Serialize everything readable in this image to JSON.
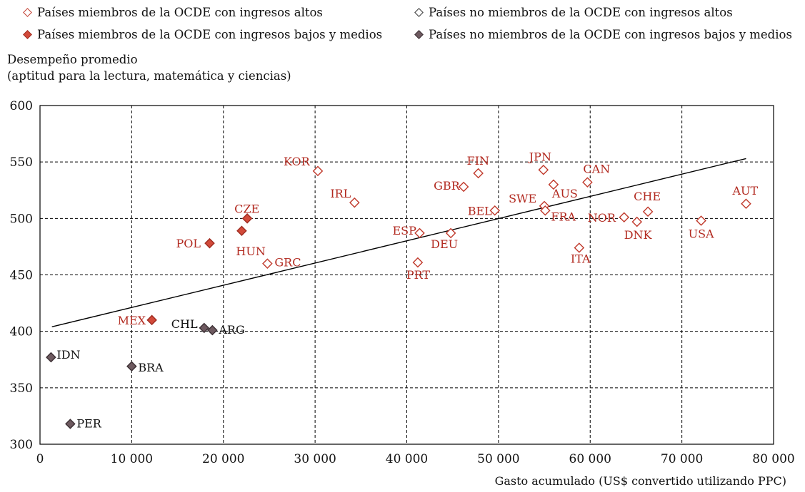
{
  "legend": [
    {
      "label": "Países miembros de la OCDE con ingresos altos",
      "marker": "open",
      "color": "#c0392b"
    },
    {
      "label": "Países no miembros de la OCDE con ingresos altos",
      "marker": "open",
      "color": "#333333"
    },
    {
      "label": "Países miembros de la OCDE con ingresos bajos y medios",
      "marker": "filled",
      "color": "#d24a3a"
    },
    {
      "label": "Países no miembros de la OCDE con ingresos bajos y medios",
      "marker": "filled",
      "color": "#6e5a60"
    }
  ],
  "colors": {
    "oecd_high_text": "#b22a20",
    "oecd_low_fill": "#d24a3a",
    "non_oecd_low_fill": "#6e5a60",
    "non_oecd_low_text": "#111111",
    "grid": "#000000"
  },
  "chart_data": {
    "type": "scatter",
    "ylabel_line1": "Desempeño promedio",
    "ylabel_line2": "(aptitud para la lectura, matemática y ciencias)",
    "xlabel": "Gasto acumulado (US$ convertido utilizando PPC)",
    "xlim": [
      0,
      80000
    ],
    "ylim": [
      300,
      600
    ],
    "xticks": [
      0,
      10000,
      20000,
      30000,
      40000,
      50000,
      60000,
      70000,
      80000
    ],
    "xtick_labels": [
      "0",
      "10 000",
      "20 000",
      "30 000",
      "40 000",
      "50 000",
      "60 000",
      "70 000",
      "80 000"
    ],
    "yticks": [
      300,
      350,
      400,
      450,
      500,
      550,
      600
    ],
    "ytick_labels": [
      "300",
      "350",
      "400",
      "450",
      "500",
      "550",
      "600"
    ],
    "grid": true,
    "trendline": {
      "x": [
        1300,
        77000
      ],
      "y": [
        404,
        553
      ]
    },
    "series": [
      {
        "name": "Países miembros de la OCDE con ingresos altos",
        "group": "oecd_high",
        "points": [
          {
            "label": "KOR",
            "x": 30300,
            "y": 542
          },
          {
            "label": "IRL",
            "x": 34300,
            "y": 514
          },
          {
            "label": "GRC",
            "x": 24800,
            "y": 460
          },
          {
            "label": "ESP",
            "x": 41400,
            "y": 487
          },
          {
            "label": "PRT",
            "x": 41200,
            "y": 461
          },
          {
            "label": "DEU",
            "x": 44800,
            "y": 487
          },
          {
            "label": "GBR",
            "x": 46200,
            "y": 528
          },
          {
            "label": "FIN",
            "x": 47800,
            "y": 540
          },
          {
            "label": "BEL",
            "x": 49600,
            "y": 507
          },
          {
            "label": "JPN",
            "x": 54900,
            "y": 543
          },
          {
            "label": "SWE",
            "x": 55000,
            "y": 511
          },
          {
            "label": "FRA",
            "x": 55100,
            "y": 507
          },
          {
            "label": "AUS",
            "x": 56000,
            "y": 530
          },
          {
            "label": "CAN",
            "x": 59700,
            "y": 532
          },
          {
            "label": "ITA",
            "x": 58800,
            "y": 474
          },
          {
            "label": "NOR",
            "x": 63700,
            "y": 501
          },
          {
            "label": "DNK",
            "x": 65100,
            "y": 497
          },
          {
            "label": "CHE",
            "x": 66300,
            "y": 506
          },
          {
            "label": "USA",
            "x": 72100,
            "y": 498
          },
          {
            "label": "AUT",
            "x": 77000,
            "y": 513
          }
        ]
      },
      {
        "name": "Países miembros de la OCDE con ingresos bajos y medios",
        "group": "oecd_low",
        "points": [
          {
            "label": "CZE",
            "x": 22600,
            "y": 500
          },
          {
            "label": "HUN",
            "x": 22000,
            "y": 489
          },
          {
            "label": "POL",
            "x": 18500,
            "y": 478
          },
          {
            "label": "MEX",
            "x": 12200,
            "y": 410
          }
        ]
      },
      {
        "name": "Países no miembros de la OCDE con ingresos bajos y medios",
        "group": "non_oecd_low",
        "points": [
          {
            "label": "CHL",
            "x": 17900,
            "y": 403
          },
          {
            "label": "ARG",
            "x": 18800,
            "y": 401
          },
          {
            "label": "IDN",
            "x": 1200,
            "y": 377
          },
          {
            "label": "BRA",
            "x": 10000,
            "y": 369
          },
          {
            "label": "PER",
            "x": 3300,
            "y": 318
          }
        ]
      }
    ]
  }
}
